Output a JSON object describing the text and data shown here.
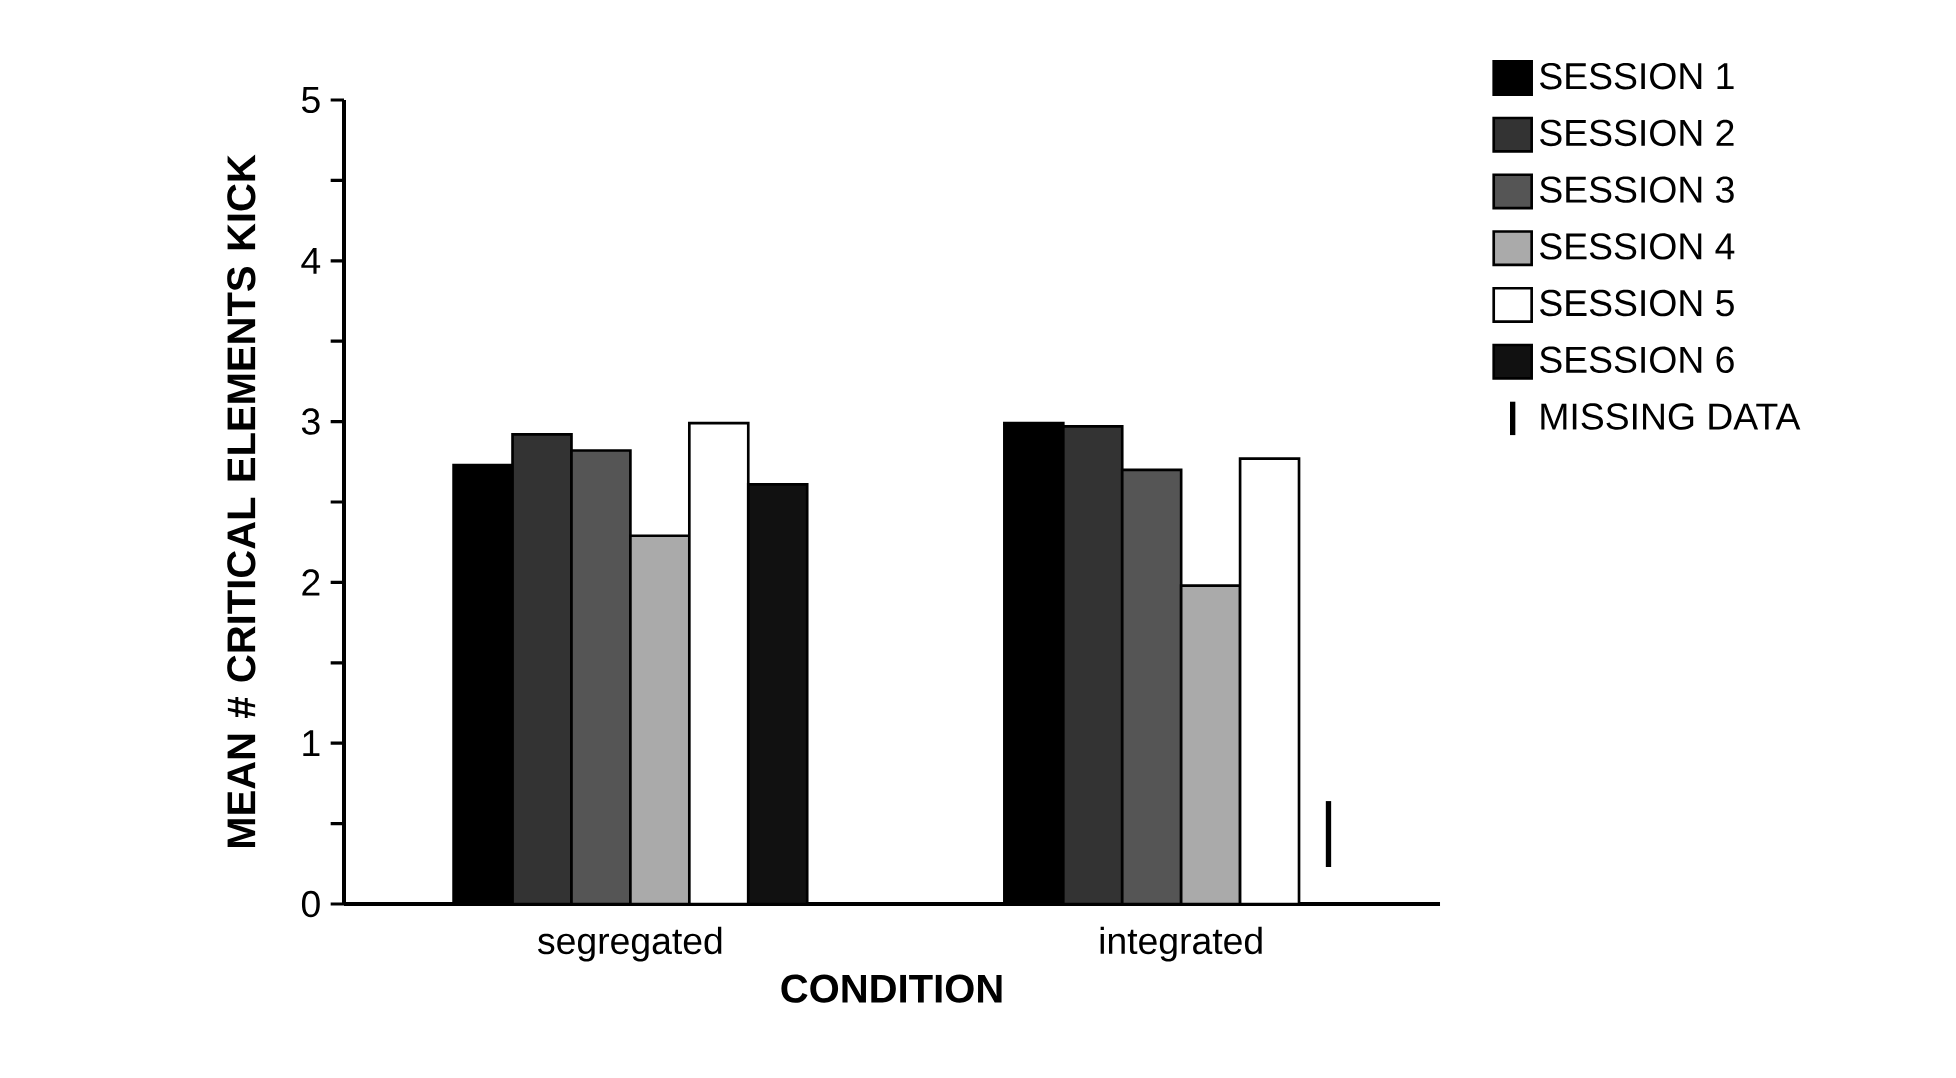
{
  "chart_data": {
    "type": "bar",
    "xlabel": "CONDITION",
    "ylabel": "MEAN # CRITICAL ELEMENTS KICK",
    "categories": [
      "segregated",
      "integrated"
    ],
    "series": [
      {
        "name": "SESSION 1",
        "color": "#000000",
        "values": [
          2.73,
          2.99
        ]
      },
      {
        "name": "SESSION 2",
        "color": "#333333",
        "values": [
          2.92,
          2.97
        ]
      },
      {
        "name": "SESSION 3",
        "color": "#555555",
        "values": [
          2.82,
          2.7
        ]
      },
      {
        "name": "SESSION 4",
        "color": "#aaaaaa",
        "values": [
          2.29,
          1.98
        ]
      },
      {
        "name": "SESSION 5",
        "color": "#ffffff",
        "values": [
          2.99,
          2.77
        ]
      },
      {
        "name": "SESSION 6",
        "color": "#111111",
        "values": [
          2.61,
          null
        ]
      }
    ],
    "annotations": [
      "MISSING DATA"
    ],
    "ylim": [
      0,
      5
    ],
    "yticks": [
      0,
      {
        "value": 0.5,
        "label": null
      },
      1,
      {
        "value": 1.5,
        "label": null
      },
      2,
      {
        "value": 2.5,
        "label": null
      },
      3,
      {
        "value": 3.5,
        "label": null
      },
      4,
      {
        "value": 4.5,
        "label": null
      },
      5
    ],
    "legend": "top right"
  }
}
